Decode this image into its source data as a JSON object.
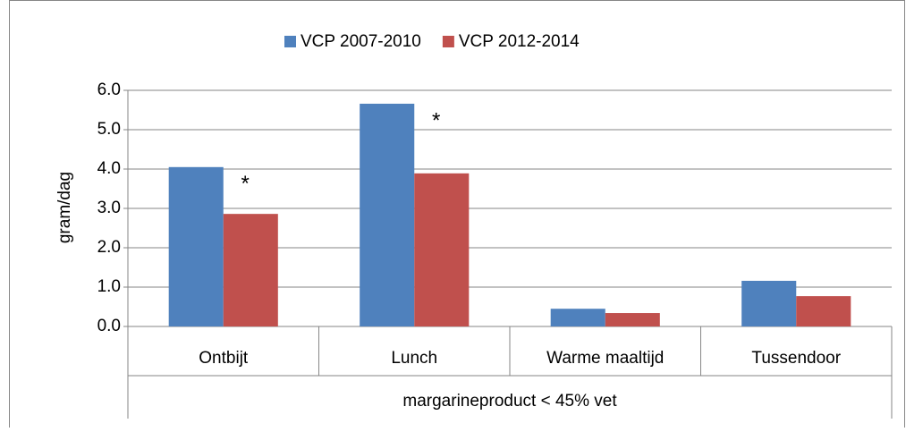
{
  "chart_data": {
    "type": "bar",
    "categories": [
      "Ontbijt",
      "Lunch",
      "Warme maaltijd",
      "Tussendoor"
    ],
    "series": [
      {
        "name": "VCP 2007-2010",
        "color": "#4f81bd",
        "values": [
          4.05,
          5.66,
          0.45,
          1.16
        ]
      },
      {
        "name": "VCP 2012-2014",
        "color": "#c0504d",
        "values": [
          2.86,
          3.89,
          0.34,
          0.77
        ]
      }
    ],
    "ylabel": "gram/dag",
    "xlabel": "margarineproduct < 45% vet",
    "ylim": [
      0,
      6
    ],
    "yticks": [
      {
        "value": 0,
        "label": "0.0"
      },
      {
        "value": 1,
        "label": "1.0"
      },
      {
        "value": 2,
        "label": "2.0"
      },
      {
        "value": 3,
        "label": "3.0"
      },
      {
        "value": 4,
        "label": "4.0"
      },
      {
        "value": 5,
        "label": "5.0"
      },
      {
        "value": 6,
        "label": "6.0"
      }
    ],
    "annotations": [
      {
        "text": "*",
        "category": "Ontbijt"
      },
      {
        "text": "*",
        "category": "Lunch"
      }
    ],
    "grid": true,
    "legend": "top"
  }
}
